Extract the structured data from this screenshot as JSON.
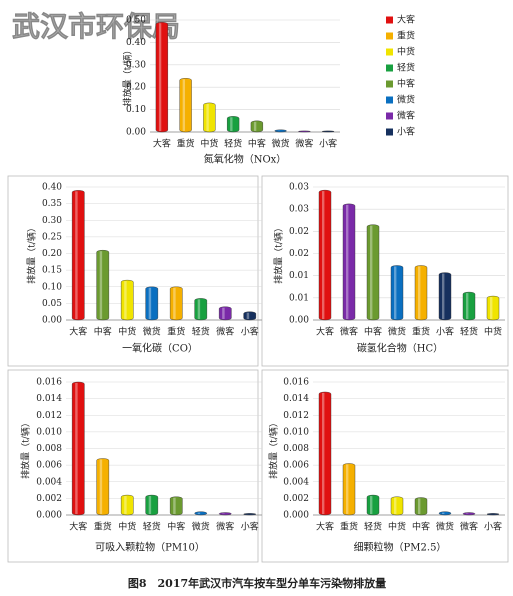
{
  "watermark": "武汉市环保局",
  "caption": "图8　2017年武汉市汽车按车型分单车污染物排放量",
  "legend": [
    {
      "name": "大客",
      "color": "#e01010"
    },
    {
      "name": "重货",
      "color": "#f5b000"
    },
    {
      "name": "中货",
      "color": "#f0e400"
    },
    {
      "name": "轻货",
      "color": "#18a040"
    },
    {
      "name": "中客",
      "color": "#6b9a30"
    },
    {
      "name": "微货",
      "color": "#0a6fc0"
    },
    {
      "name": "微客",
      "color": "#7a2aa8"
    },
    {
      "name": "小客",
      "color": "#16305e"
    }
  ],
  "chart_data": [
    {
      "type": "bar",
      "title": "氮氧化物（NOx）",
      "ylabel": "排放量（t/辆）",
      "categories": [
        "大客",
        "重货",
        "中货",
        "轻货",
        "中客",
        "微货",
        "微客",
        "小客"
      ],
      "values": [
        0.49,
        0.24,
        0.13,
        0.07,
        0.05,
        0.01,
        0.005,
        0.005
      ],
      "ylim": [
        0,
        0.5
      ],
      "yticks": [
        {
          "value": 0,
          "label": "0.00"
        },
        {
          "value": 0.1,
          "label": "0.10"
        },
        {
          "value": 0.2,
          "label": "0.20"
        },
        {
          "value": 0.3,
          "label": "0.30"
        },
        {
          "value": 0.4,
          "label": "0.40"
        },
        {
          "value": 0.5,
          "label": "0.50"
        }
      ],
      "grid": true
    },
    {
      "type": "bar",
      "title": "一氧化碳（CO）",
      "ylabel": "排放量（t/辆）",
      "categories": [
        "大客",
        "中客",
        "中货",
        "微货",
        "重货",
        "轻货",
        "微客",
        "小客"
      ],
      "values": [
        0.39,
        0.21,
        0.12,
        0.1,
        0.1,
        0.065,
        0.04,
        0.025
      ],
      "ylim": [
        0,
        0.4
      ],
      "yticks": [
        {
          "value": 0,
          "label": "0.00"
        },
        {
          "value": 0.05,
          "label": "0.05"
        },
        {
          "value": 0.1,
          "label": "0.10"
        },
        {
          "value": 0.15,
          "label": "0.15"
        },
        {
          "value": 0.2,
          "label": "0.20"
        },
        {
          "value": 0.25,
          "label": "0.25"
        },
        {
          "value": 0.3,
          "label": "0.30"
        },
        {
          "value": 0.35,
          "label": "0.35"
        },
        {
          "value": 0.4,
          "label": "0.40"
        }
      ],
      "grid": true
    },
    {
      "type": "bar",
      "title": "碳氢化合物（HC）",
      "ylabel": "排放量（t/辆）",
      "categories": [
        "大客",
        "微客",
        "中客",
        "微货",
        "重货",
        "小客",
        "轻货",
        "中货"
      ],
      "values": [
        0.0293,
        0.0262,
        0.0215,
        0.0123,
        0.0123,
        0.0107,
        0.0063,
        0.0054
      ],
      "ylim": [
        0,
        0.03
      ],
      "yticks": [
        {
          "value": 0,
          "label": "0.00"
        },
        {
          "value": 0.005,
          "label": "0.01"
        },
        {
          "value": 0.01,
          "label": "0.01"
        },
        {
          "value": 0.015,
          "label": "0.02"
        },
        {
          "value": 0.02,
          "label": "0.02"
        },
        {
          "value": 0.025,
          "label": "0.03"
        },
        {
          "value": 0.03,
          "label": "0.03"
        }
      ],
      "grid": true
    },
    {
      "type": "bar",
      "title": "可吸入颗粒物（PM10）",
      "ylabel": "排放量（t/辆）",
      "categories": [
        "大客",
        "重货",
        "中货",
        "轻货",
        "中客",
        "微货",
        "微客",
        "小客"
      ],
      "values": [
        0.016,
        0.0068,
        0.0024,
        0.0024,
        0.0022,
        0.0004,
        0.0003,
        0.0002
      ],
      "ylim": [
        0,
        0.016
      ],
      "yticks": [
        {
          "value": 0,
          "label": "0.000"
        },
        {
          "value": 0.002,
          "label": "0.002"
        },
        {
          "value": 0.004,
          "label": "0.004"
        },
        {
          "value": 0.006,
          "label": "0.006"
        },
        {
          "value": 0.008,
          "label": "0.008"
        },
        {
          "value": 0.01,
          "label": "0.010"
        },
        {
          "value": 0.012,
          "label": "0.012"
        },
        {
          "value": 0.014,
          "label": "0.014"
        },
        {
          "value": 0.016,
          "label": "0.016"
        }
      ],
      "grid": true
    },
    {
      "type": "bar",
      "title": "细颗粒物（PM2.5）",
      "ylabel": "排放量（t/辆）",
      "categories": [
        "大客",
        "重货",
        "轻货",
        "中货",
        "中客",
        "微货",
        "微客",
        "小客"
      ],
      "values": [
        0.0148,
        0.0062,
        0.0024,
        0.0022,
        0.0021,
        0.0004,
        0.0003,
        0.0002
      ],
      "ylim": [
        0,
        0.016
      ],
      "yticks": [
        {
          "value": 0,
          "label": "0.000"
        },
        {
          "value": 0.002,
          "label": "0.002"
        },
        {
          "value": 0.004,
          "label": "0.004"
        },
        {
          "value": 0.006,
          "label": "0.006"
        },
        {
          "value": 0.008,
          "label": "0.008"
        },
        {
          "value": 0.01,
          "label": "0.010"
        },
        {
          "value": 0.012,
          "label": "0.012"
        },
        {
          "value": 0.014,
          "label": "0.014"
        },
        {
          "value": 0.016,
          "label": "0.016"
        }
      ],
      "grid": true
    }
  ]
}
